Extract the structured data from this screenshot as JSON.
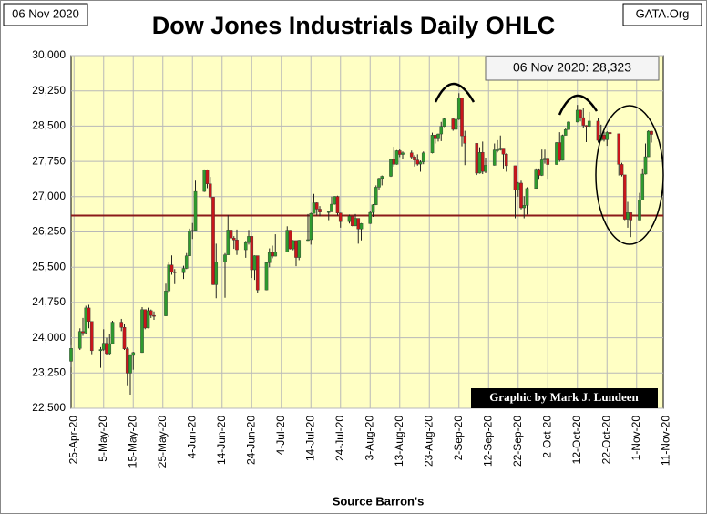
{
  "chart_data": {
    "type": "candlestick",
    "title": "Dow Jones Industrials Daily OHLC",
    "date_label": "06 Nov 2020",
    "source_label": "GATA.Org",
    "footer": "Source Barron's",
    "annotations": [
      "06 Nov 2020:  28,323",
      "Graphic by Mark J. Lundeen"
    ],
    "up_color": "#2e9a2e",
    "down_color": "#c8161b",
    "background": "#ffffc4",
    "grid": true,
    "hline": {
      "value": 26600,
      "color": "#8b1a1a"
    },
    "xlim": [
      "2020-04-24",
      "2020-11-10"
    ],
    "ylim": [
      22500,
      30000
    ],
    "yticks": [
      {
        "value": 22500,
        "label": "22,500"
      },
      {
        "value": 23250,
        "label": "23,250"
      },
      {
        "value": 24000,
        "label": "24,000"
      },
      {
        "value": 24750,
        "label": "24,750"
      },
      {
        "value": 25500,
        "label": "25,500"
      },
      {
        "value": 26250,
        "label": "26,250"
      },
      {
        "value": 27000,
        "label": "27,000"
      },
      {
        "value": 27750,
        "label": "27,750"
      },
      {
        "value": 28500,
        "label": "28,500"
      },
      {
        "value": 29250,
        "label": "29,250"
      },
      {
        "value": 30000,
        "label": "30,000"
      }
    ],
    "xticks": [
      {
        "value": "2020-04-25",
        "label": "25-Apr-20"
      },
      {
        "value": "2020-05-05",
        "label": "5-May-20"
      },
      {
        "value": "2020-05-15",
        "label": "15-May-20"
      },
      {
        "value": "2020-05-25",
        "label": "25-May-20"
      },
      {
        "value": "2020-06-04",
        "label": "4-Jun-20"
      },
      {
        "value": "2020-06-14",
        "label": "14-Jun-20"
      },
      {
        "value": "2020-06-24",
        "label": "24-Jun-20"
      },
      {
        "value": "2020-07-04",
        "label": "4-Jul-20"
      },
      {
        "value": "2020-07-14",
        "label": "14-Jul-20"
      },
      {
        "value": "2020-07-24",
        "label": "24-Jul-20"
      },
      {
        "value": "2020-08-03",
        "label": "3-Aug-20"
      },
      {
        "value": "2020-08-13",
        "label": "13-Aug-20"
      },
      {
        "value": "2020-08-23",
        "label": "23-Aug-20"
      },
      {
        "value": "2020-09-02",
        "label": "2-Sep-20"
      },
      {
        "value": "2020-09-12",
        "label": "12-Sep-20"
      },
      {
        "value": "2020-09-22",
        "label": "22-Sep-20"
      },
      {
        "value": "2020-10-02",
        "label": "2-Oct-20"
      },
      {
        "value": "2020-10-12",
        "label": "12-Oct-20"
      },
      {
        "value": "2020-10-22",
        "label": "22-Oct-20"
      },
      {
        "value": "2020-11-01",
        "label": "1-Nov-20"
      },
      {
        "value": "2020-11-11",
        "label": "11-Nov-20"
      }
    ],
    "x": [
      "2020-04-24",
      "2020-04-27",
      "2020-04-28",
      "2020-04-29",
      "2020-04-30",
      "2020-05-01",
      "2020-05-04",
      "2020-05-05",
      "2020-05-06",
      "2020-05-07",
      "2020-05-08",
      "2020-05-11",
      "2020-05-12",
      "2020-05-13",
      "2020-05-14",
      "2020-05-15",
      "2020-05-18",
      "2020-05-19",
      "2020-05-20",
      "2020-05-21",
      "2020-05-22",
      "2020-05-26",
      "2020-05-27",
      "2020-05-28",
      "2020-05-29",
      "2020-06-01",
      "2020-06-02",
      "2020-06-03",
      "2020-06-04",
      "2020-06-05",
      "2020-06-08",
      "2020-06-09",
      "2020-06-10",
      "2020-06-11",
      "2020-06-12",
      "2020-06-15",
      "2020-06-16",
      "2020-06-17",
      "2020-06-18",
      "2020-06-19",
      "2020-06-22",
      "2020-06-23",
      "2020-06-24",
      "2020-06-25",
      "2020-06-26",
      "2020-06-29",
      "2020-06-30",
      "2020-07-01",
      "2020-07-02",
      "2020-07-06",
      "2020-07-07",
      "2020-07-08",
      "2020-07-09",
      "2020-07-10",
      "2020-07-13",
      "2020-07-14",
      "2020-07-15",
      "2020-07-16",
      "2020-07-17",
      "2020-07-20",
      "2020-07-21",
      "2020-07-22",
      "2020-07-23",
      "2020-07-24",
      "2020-07-27",
      "2020-07-28",
      "2020-07-29",
      "2020-07-30",
      "2020-07-31",
      "2020-08-03",
      "2020-08-04",
      "2020-08-05",
      "2020-08-06",
      "2020-08-07",
      "2020-08-10",
      "2020-08-11",
      "2020-08-12",
      "2020-08-13",
      "2020-08-14",
      "2020-08-17",
      "2020-08-18",
      "2020-08-19",
      "2020-08-20",
      "2020-08-21",
      "2020-08-24",
      "2020-08-25",
      "2020-08-26",
      "2020-08-27",
      "2020-08-28",
      "2020-08-31",
      "2020-09-01",
      "2020-09-02",
      "2020-09-03",
      "2020-09-04",
      "2020-09-08",
      "2020-09-09",
      "2020-09-10",
      "2020-09-11",
      "2020-09-14",
      "2020-09-15",
      "2020-09-16",
      "2020-09-17",
      "2020-09-18",
      "2020-09-21",
      "2020-09-22",
      "2020-09-23",
      "2020-09-24",
      "2020-09-25",
      "2020-09-28",
      "2020-09-29",
      "2020-09-30",
      "2020-10-01",
      "2020-10-02",
      "2020-10-05",
      "2020-10-06",
      "2020-10-07",
      "2020-10-08",
      "2020-10-09",
      "2020-10-12",
      "2020-10-13",
      "2020-10-14",
      "2020-10-15",
      "2020-10-16",
      "2020-10-19",
      "2020-10-20",
      "2020-10-21",
      "2020-10-22",
      "2020-10-23",
      "2020-10-26",
      "2020-10-27",
      "2020-10-28",
      "2020-10-29",
      "2020-10-30",
      "2020-11-02",
      "2020-11-03",
      "2020-11-04",
      "2020-11-05",
      "2020-11-06"
    ],
    "open": [
      23500,
      23775,
      24134,
      24101,
      24634,
      24346,
      23724,
      23750,
      23883,
      23664,
      23875,
      24331,
      24221,
      23764,
      23248,
      23625,
      23685,
      24597,
      24207,
      24576,
      24474,
      24465,
      24995,
      25548,
      25400,
      25383,
      25475,
      25742,
      26270,
      26282,
      27111,
      27572,
      27272,
      26990,
      25128,
      25606,
      25763,
      26290,
      26120,
      26080,
      25871,
      26025,
      26156,
      25445,
      25745,
      25016,
      25596,
      25813,
      25735,
      25827,
      26287,
      25890,
      26067,
      25706,
      26075,
      26086,
      26643,
      26870,
      26735,
      26672,
      26681,
      26840,
      27005,
      26652,
      26470,
      26585,
      26380,
      26540,
      26314,
      26428,
      26664,
      26828,
      27201,
      27387,
      27433,
      27791,
      27687,
      27976,
      27897,
      27931,
      27844,
      27778,
      27692,
      27739,
      27930,
      28308,
      28248,
      28332,
      28492,
      28654,
      28430,
      28645,
      29100,
      28292,
      28133,
      27500,
      27940,
      27535,
      27666,
      27993,
      27995,
      28032,
      27902,
      27657,
      27148,
      27288,
      26763,
      26815,
      27174,
      27584,
      27452,
      27782,
      27817,
      27683,
      28149,
      27773,
      28303,
      28426,
      28587,
      28838,
      28680,
      28515,
      28494,
      28606,
      28196,
      28309,
      28211,
      28364,
      28336,
      27686,
      27463,
      26520,
      26660,
      26502,
      26925,
      27481,
      27848,
      28390
    ],
    "high": [
      23840,
      24200,
      24420,
      24680,
      24700,
      24346,
      23800,
      24180,
      24000,
      24080,
      24360,
      24400,
      24300,
      23800,
      23650,
      23700,
      24650,
      24600,
      24640,
      24600,
      24560,
      25150,
      25600,
      25750,
      25460,
      25530,
      25800,
      26320,
      26440,
      27340,
      27580,
      27580,
      27420,
      26990,
      26000,
      25800,
      26610,
      26400,
      26160,
      26300,
      26060,
      26290,
      26156,
      25750,
      25745,
      25600,
      25900,
      25960,
      26200,
      26370,
      26290,
      26080,
      26070,
      26080,
      26630,
      26660,
      27060,
      26880,
      26800,
      26700,
      27000,
      27010,
      27020,
      26660,
      26620,
      26590,
      26630,
      26540,
      26440,
      26700,
      26840,
      27240,
      27400,
      27450,
      27810,
      28060,
      27990,
      28010,
      27960,
      27980,
      27880,
      27900,
      27770,
      27960,
      28360,
      28320,
      28340,
      28590,
      28670,
      28660,
      28660,
      29200,
      29100,
      28400,
      28133,
      28050,
      28170,
      27830,
      28130,
      28200,
      28300,
      28030,
      27920,
      27657,
      27310,
      27340,
      27010,
      27200,
      27600,
      27600,
      28000,
      28000,
      27830,
      28160,
      28370,
      28320,
      28450,
      28600,
      28950,
      28850,
      28880,
      28520,
      28800,
      28670,
      28530,
      28390,
      28390,
      28380,
      28336,
      27720,
      27463,
      26890,
      26660,
      27080,
      27600,
      28130,
      28410,
      28400
    ],
    "low": [
      23370,
      23740,
      24040,
      24080,
      24200,
      23650,
      23360,
      23720,
      23630,
      23640,
      23860,
      24140,
      23740,
      22990,
      22790,
      23320,
      23680,
      24180,
      24200,
      24420,
      24380,
      24460,
      24960,
      25340,
      25140,
      25250,
      25460,
      25740,
      26100,
      26280,
      27100,
      27180,
      26950,
      25120,
      24840,
      24850,
      25760,
      26080,
      25890,
      25760,
      25700,
      25980,
      25270,
      25230,
      24960,
      25010,
      25500,
      25690,
      25730,
      25820,
      25880,
      25860,
      25520,
      25650,
      26060,
      25980,
      26640,
      26600,
      26580,
      26500,
      26670,
      26830,
      26600,
      26340,
      26430,
      26370,
      26370,
      26000,
      26070,
      26420,
      26570,
      26820,
      27150,
      27240,
      27420,
      27640,
      27680,
      27840,
      27790,
      27800,
      27640,
      27660,
      27530,
      27690,
      27920,
      28130,
      28170,
      28180,
      28480,
      28400,
      28340,
      28630,
      28070,
      27670,
      27460,
      27490,
      27480,
      27500,
      27660,
      27940,
      27980,
      27600,
      27530,
      26540,
      27000,
      26730,
      26540,
      26620,
      27170,
      27380,
      27440,
      27700,
      27380,
      27680,
      27740,
      27770,
      28300,
      28420,
      28580,
      28600,
      28450,
      28160,
      28480,
      28150,
      28190,
      28170,
      28080,
      28170,
      27450,
      27430,
      26500,
      26340,
      26140,
      26500,
      26920,
      27470,
      27840,
      28150
    ],
    "close": [
      23775,
      24134,
      24101,
      24634,
      24346,
      23724,
      23750,
      23883,
      23664,
      23875,
      24331,
      24221,
      23764,
      23248,
      23625,
      23685,
      24597,
      24207,
      24576,
      24474,
      24465,
      24995,
      25548,
      25400,
      25383,
      25475,
      25742,
      26270,
      26282,
      27111,
      27572,
      27272,
      26990,
      25128,
      25606,
      25763,
      26290,
      26120,
      26080,
      25871,
      26025,
      26156,
      25445,
      25745,
      25016,
      25596,
      25813,
      25735,
      25827,
      26287,
      25890,
      26067,
      25706,
      26075,
      26086,
      26643,
      26870,
      26735,
      26672,
      26681,
      26840,
      27005,
      26652,
      26470,
      26585,
      26380,
      26540,
      26314,
      26428,
      26664,
      26828,
      27201,
      27387,
      27433,
      27791,
      27687,
      27976,
      27897,
      27931,
      27844,
      27778,
      27692,
      27739,
      27930,
      28308,
      28248,
      28332,
      28492,
      28654,
      28430,
      28645,
      29100,
      28292,
      28133,
      27500,
      27940,
      27535,
      27666,
      27993,
      27995,
      28032,
      27902,
      27657,
      27148,
      27288,
      26763,
      26815,
      27174,
      27584,
      27452,
      27782,
      27817,
      27683,
      28149,
      27773,
      28303,
      28426,
      28587,
      28838,
      28680,
      28515,
      28494,
      28606,
      28196,
      28309,
      28211,
      28364,
      28336,
      27686,
      27463,
      26520,
      26660,
      26502,
      26925,
      27481,
      27848,
      28390,
      28323
    ]
  }
}
